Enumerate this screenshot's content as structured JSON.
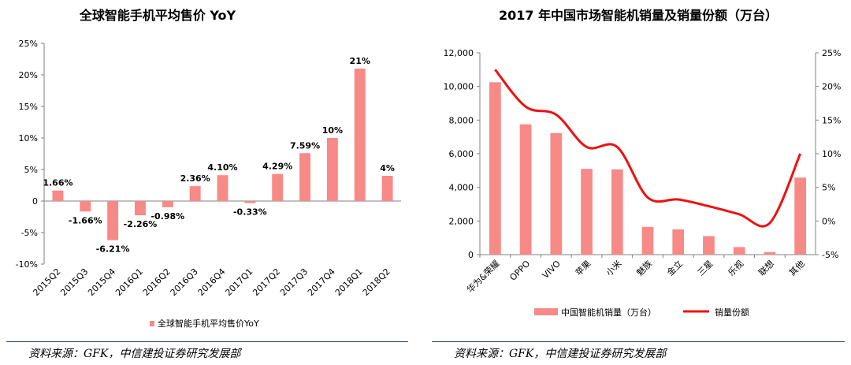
{
  "chart_data": [
    {
      "type": "bar",
      "title": "全球智能手机平均售价 YoY",
      "categories": [
        "2015Q2",
        "2015Q3",
        "2015Q4",
        "2016Q1",
        "2016Q2",
        "2016Q3",
        "2016Q4",
        "2017Q1",
        "2017Q2",
        "2017Q3",
        "2017Q4",
        "2018Q1",
        "2018Q2"
      ],
      "series": [
        {
          "name": "全球智能手机平均售价YoY",
          "values": [
            1.66,
            -1.66,
            -6.21,
            -2.26,
            -0.98,
            2.36,
            4.1,
            -0.33,
            4.29,
            7.59,
            10,
            21,
            4
          ],
          "labels": [
            "1.66%",
            "-1.66%",
            "-6.21%",
            "-2.26%",
            "-0.98%",
            "2.36%",
            "4.10%",
            "-0.33%",
            "4.29%",
            "7.59%",
            "10%",
            "21%",
            "4%"
          ],
          "color": "#f78a87"
        }
      ],
      "y_ticks": [
        "25%",
        "20%",
        "15%",
        "10%",
        "5%",
        "0",
        "-5%",
        "-10%"
      ],
      "ylim": [
        -10,
        25
      ],
      "legend_position": "bottom",
      "source": "资料来源：GFK，中信建投证券研究发展部"
    },
    {
      "type": "bar+line",
      "title": "2017 年中国市场智能机销量及销量份额（万台）",
      "categories": [
        "华为&荣耀",
        "OPPO",
        "VIVO",
        "苹果",
        "小米",
        "魅族",
        "金立",
        "三星",
        "乐视",
        "联想",
        "其他"
      ],
      "series": [
        {
          "name": "中国智能机销量（万台）",
          "type": "bar",
          "axis": "left",
          "values": [
            10250,
            7750,
            7230,
            5100,
            5070,
            1650,
            1500,
            1100,
            450,
            150,
            4580
          ],
          "color": "#f78a87"
        },
        {
          "name": "销量份额",
          "type": "line",
          "axis": "right",
          "values": [
            22.5,
            17.0,
            15.8,
            11.0,
            11.0,
            3.5,
            3.2,
            2.2,
            1.0,
            -0.3,
            10.0
          ],
          "color": "#ee1111"
        }
      ],
      "y_left_ticks": [
        "12,000",
        "10,000",
        "8,000",
        "6,000",
        "4,000",
        "2,000",
        "0"
      ],
      "ylim_left": [
        0,
        12000
      ],
      "y_right_ticks": [
        "25%",
        "20%",
        "15%",
        "10%",
        "5%",
        "0%",
        "-5%"
      ],
      "ylim_right": [
        -5,
        25
      ],
      "legend_position": "bottom",
      "source": "资料来源：GFK，中信建投证券研究发展部"
    }
  ]
}
